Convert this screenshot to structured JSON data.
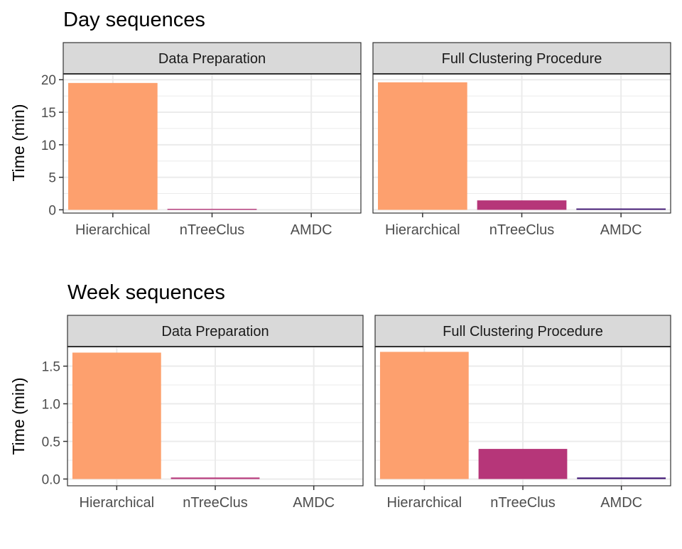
{
  "colors": {
    "Hierarchical": "#FDA06E",
    "nTreeClus": "#B63679",
    "AMDC": "#3B0F70",
    "strip_bg": "#D9D9D9",
    "grid": "#EBEBEB",
    "border": "#333333"
  },
  "chart_data": [
    {
      "type": "bar",
      "title": "Day sequences",
      "ylabel": "Time (min)",
      "categories": [
        "Hierarchical",
        "nTreeClus",
        "AMDC"
      ],
      "ylim": [
        -0.5,
        20.9
      ],
      "yticks": [
        0,
        5,
        10,
        15,
        20
      ],
      "ytick_labels": [
        "0",
        "5",
        "10",
        "15",
        "20"
      ],
      "grid": true,
      "panels": [
        {
          "label": "Data Preparation",
          "values": [
            19.5,
            0.15,
            0.0
          ]
        },
        {
          "label": "Full Clustering Procedure",
          "values": [
            19.6,
            1.45,
            0.2
          ]
        }
      ]
    },
    {
      "type": "bar",
      "title": "Week sequences",
      "ylabel": "Time (min)",
      "categories": [
        "Hierarchical",
        "nTreeClus",
        "AMDC"
      ],
      "ylim": [
        -0.09,
        1.76
      ],
      "yticks": [
        0,
        0.5,
        1.0,
        1.5
      ],
      "ytick_labels": [
        "0.0",
        "0.5",
        "1.0",
        "1.5"
      ],
      "grid": true,
      "panels": [
        {
          "label": "Data Preparation",
          "values": [
            1.68,
            0.02,
            0.0
          ]
        },
        {
          "label": "Full Clustering Procedure",
          "values": [
            1.69,
            0.4,
            0.02
          ]
        }
      ]
    }
  ]
}
